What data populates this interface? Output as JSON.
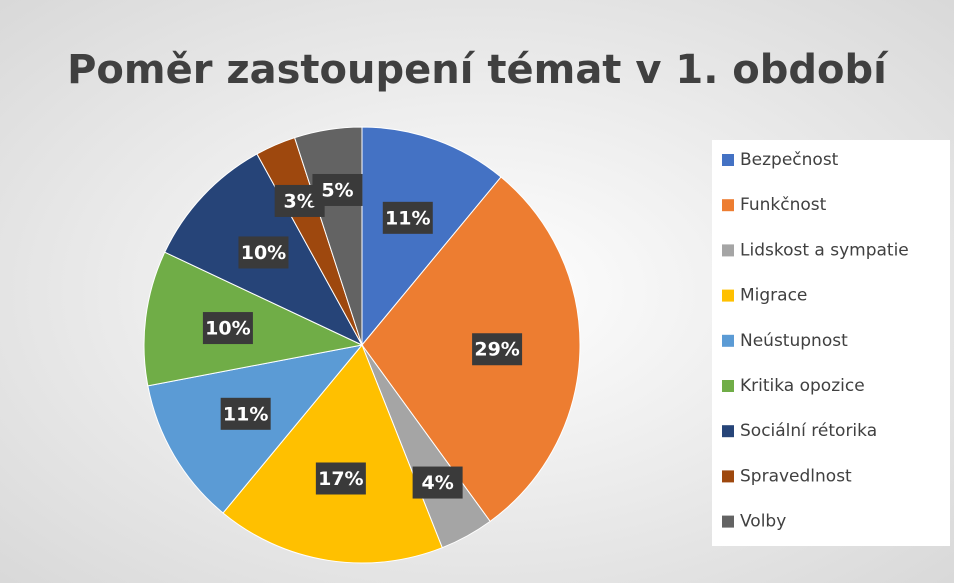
{
  "chart_data": {
    "type": "pie",
    "title": "Poměr zastoupení témat v 1. období",
    "categories": [
      "Bezpečnost",
      "Funkčnost",
      "Lidskost a sympatie",
      "Migrace",
      "Neústupnost",
      "Kritika opozice",
      "Sociální rétorika",
      "Spravedlnost",
      "Volby"
    ],
    "values": [
      11,
      29,
      4,
      17,
      11,
      10,
      10,
      3,
      5
    ],
    "value_labels": [
      "11%",
      "29%",
      "4%",
      "17%",
      "11%",
      "10%",
      "10%",
      "3%",
      "5%"
    ],
    "colors": [
      "#4472c4",
      "#ed7d31",
      "#a5a5a5",
      "#ffc000",
      "#5b9bd5",
      "#70ad47",
      "#264478",
      "#9e480e",
      "#636363"
    ],
    "legend": "right"
  }
}
